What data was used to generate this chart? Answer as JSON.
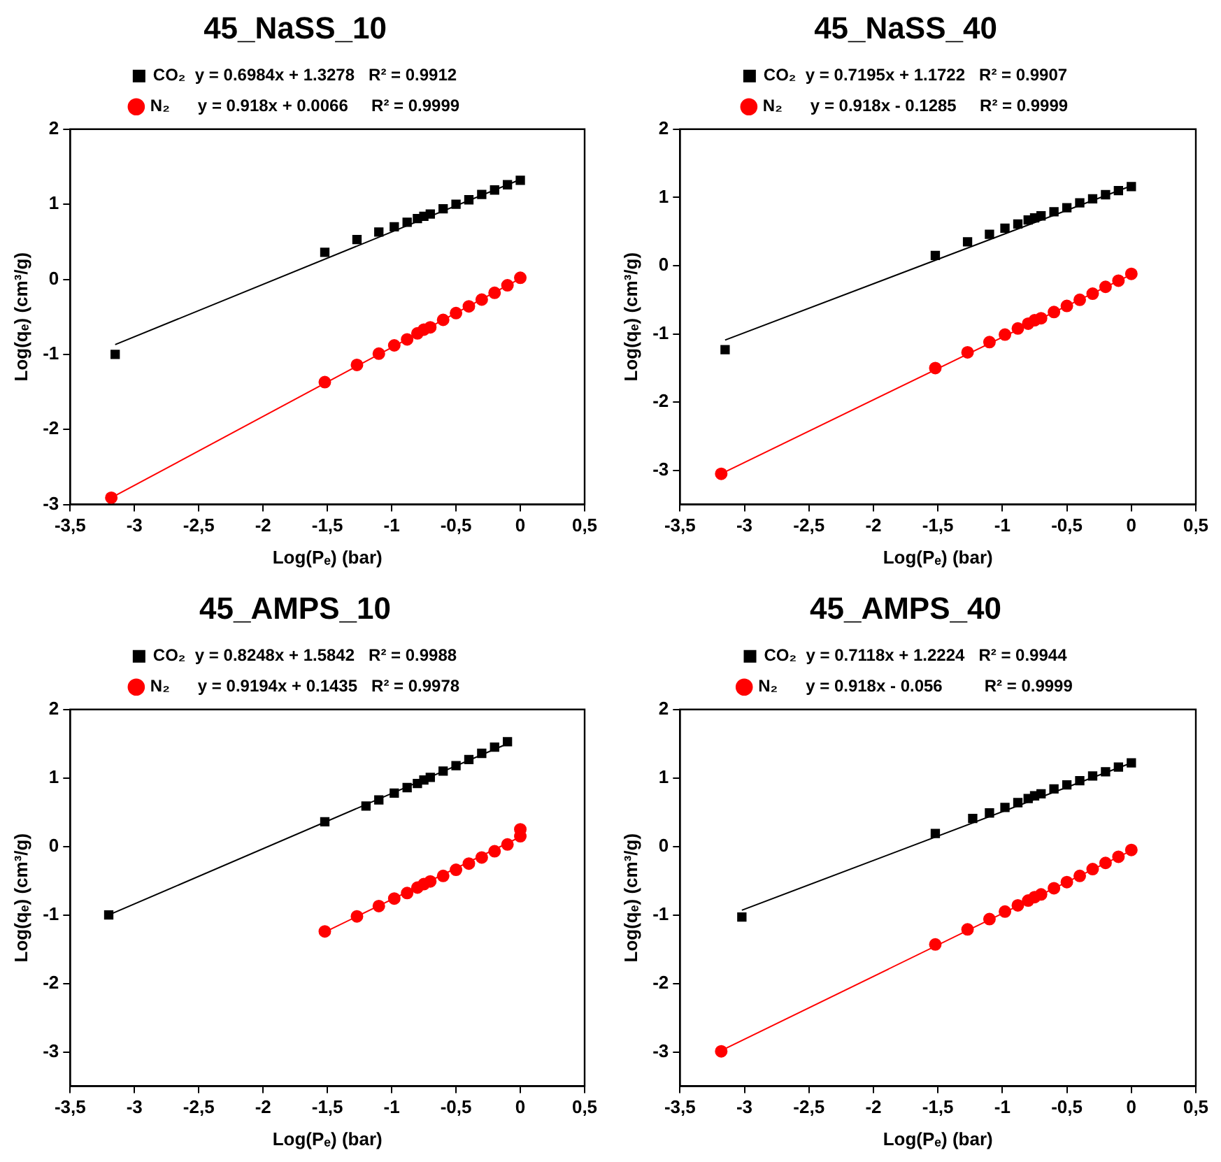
{
  "chart_data": [
    {
      "type": "scatter",
      "title": "45_NaSS_10",
      "xlabel": "Log(Pₑ) (bar)",
      "ylabel": "Log(qₑ) (cm³/g)",
      "legend": "top",
      "xlim": [
        -3.5,
        0.5
      ],
      "xticks": [
        {
          "value": -3.5,
          "label": "-3,5"
        },
        -3,
        {
          "value": -2.5,
          "label": "-2,5"
        },
        -2,
        {
          "value": -1.5,
          "label": "-1,5"
        },
        -1,
        {
          "value": -0.5,
          "label": "-0,5"
        },
        0,
        {
          "value": 0.5,
          "label": "0,5"
        }
      ],
      "ylim": [
        -3,
        2
      ],
      "yticks": [
        -3,
        -2,
        -1,
        0,
        1,
        2
      ],
      "series": [
        {
          "name": "CO₂  y = 0.6984x + 1.3278   R² = 0.9912",
          "color": "#000000",
          "marker": "square",
          "x": [
            -3.15,
            -1.52,
            -1.27,
            -1.1,
            -0.98,
            -0.88,
            -0.8,
            -0.75,
            -0.7,
            -0.6,
            -0.5,
            -0.4,
            -0.3,
            -0.2,
            -0.1,
            0
          ],
          "values": [
            -1.0,
            0.36,
            0.53,
            0.63,
            0.7,
            0.76,
            0.81,
            0.84,
            0.87,
            0.94,
            1.0,
            1.06,
            1.13,
            1.19,
            1.26,
            1.32
          ]
        },
        {
          "name": "N₂      y = 0.918x + 0.0066     R² = 0.9999",
          "color": "#ff0000",
          "marker": "circle",
          "x": [
            -3.18,
            -1.52,
            -1.27,
            -1.1,
            -0.98,
            -0.88,
            -0.8,
            -0.75,
            -0.7,
            -0.6,
            -0.5,
            -0.4,
            -0.3,
            -0.2,
            -0.1,
            0
          ],
          "values": [
            -2.91,
            -1.37,
            -1.14,
            -0.99,
            -0.88,
            -0.8,
            -0.72,
            -0.67,
            -0.64,
            -0.54,
            -0.45,
            -0.36,
            -0.27,
            -0.18,
            -0.08,
            0.02
          ]
        },
        {
          "type": "line",
          "color": "#000000",
          "marker": "none",
          "line_style": "solid",
          "x": [
            -3.15,
            0
          ],
          "values": [
            -0.87,
            1.33
          ]
        },
        {
          "type": "line",
          "color": "#ff0000",
          "marker": "none",
          "line_style": "solid",
          "x": [
            -3.18,
            0
          ],
          "values": [
            -2.91,
            0.01
          ]
        }
      ]
    },
    {
      "type": "scatter",
      "title": "45_NaSS_40",
      "xlabel": "Log(Pₑ) (bar)",
      "ylabel": "Log(qₑ) (cm³/g)",
      "legend": "top",
      "xlim": [
        -3.5,
        0.5
      ],
      "xticks": [
        {
          "value": -3.5,
          "label": "-3,5"
        },
        -3,
        {
          "value": -2.5,
          "label": "-2,5"
        },
        -2,
        {
          "value": -1.5,
          "label": "-1,5"
        },
        -1,
        {
          "value": -0.5,
          "label": "-0,5"
        },
        0,
        {
          "value": 0.5,
          "label": "0,5"
        }
      ],
      "ylim": [
        -3.5,
        2
      ],
      "yticks": [
        -3,
        -2,
        -1,
        0,
        1,
        2
      ],
      "series": [
        {
          "name": "CO₂  y = 0.7195x + 1.1722   R² = 0.9907",
          "color": "#000000",
          "marker": "square",
          "x": [
            -3.15,
            -1.52,
            -1.27,
            -1.1,
            -0.98,
            -0.88,
            -0.8,
            -0.75,
            -0.7,
            -0.6,
            -0.5,
            -0.4,
            -0.3,
            -0.2,
            -0.1,
            0
          ],
          "values": [
            -1.23,
            0.15,
            0.35,
            0.46,
            0.55,
            0.61,
            0.67,
            0.7,
            0.73,
            0.79,
            0.85,
            0.92,
            0.98,
            1.04,
            1.1,
            1.16
          ]
        },
        {
          "name": "N₂      y = 0.918x - 0.1285     R² = 0.9999",
          "color": "#ff0000",
          "marker": "circle",
          "x": [
            -3.18,
            -1.52,
            -1.27,
            -1.1,
            -0.98,
            -0.88,
            -0.8,
            -0.75,
            -0.7,
            -0.6,
            -0.5,
            -0.4,
            -0.3,
            -0.2,
            -0.1,
            0
          ],
          "values": [
            -3.05,
            -1.5,
            -1.27,
            -1.12,
            -1.01,
            -0.92,
            -0.85,
            -0.8,
            -0.77,
            -0.68,
            -0.59,
            -0.5,
            -0.41,
            -0.31,
            -0.22,
            -0.12
          ]
        },
        {
          "type": "line",
          "color": "#000000",
          "marker": "none",
          "line_style": "solid",
          "x": [
            -3.15,
            0
          ],
          "values": [
            -1.09,
            1.17
          ]
        },
        {
          "type": "line",
          "color": "#ff0000",
          "marker": "none",
          "line_style": "solid",
          "x": [
            -3.18,
            0
          ],
          "values": [
            -3.05,
            -0.13
          ]
        }
      ]
    },
    {
      "type": "scatter",
      "title": "45_AMPS_10",
      "xlabel": "Log(Pₑ) (bar)",
      "ylabel": "Log(qₑ) (cm³/g)",
      "legend": "top",
      "xlim": [
        -3.5,
        0.5
      ],
      "xticks": [
        {
          "value": -3.5,
          "label": "-3,5"
        },
        -3,
        {
          "value": -2.5,
          "label": "-2,5"
        },
        -2,
        {
          "value": -1.5,
          "label": "-1,5"
        },
        -1,
        {
          "value": -0.5,
          "label": "-0,5"
        },
        0,
        {
          "value": 0.5,
          "label": "0,5"
        }
      ],
      "ylim": [
        -3.5,
        2
      ],
      "yticks": [
        -3,
        -2,
        -1,
        0,
        1,
        2
      ],
      "series": [
        {
          "name": "CO₂  y = 0.8248x + 1.5842   R² = 0.9988",
          "color": "#000000",
          "marker": "square",
          "x": [
            -3.2,
            -1.52,
            -1.2,
            -1.1,
            -0.98,
            -0.88,
            -0.8,
            -0.75,
            -0.7,
            -0.6,
            -0.5,
            -0.4,
            -0.3,
            -0.2,
            -0.1
          ],
          "values": [
            -1.0,
            0.36,
            0.59,
            0.68,
            0.78,
            0.86,
            0.92,
            0.97,
            1.01,
            1.1,
            1.18,
            1.27,
            1.36,
            1.45,
            1.53
          ]
        },
        {
          "name": "N₂      y = 0.9194x + 0.1435   R² = 0.9978",
          "color": "#ff0000",
          "marker": "circle",
          "x": [
            -1.52,
            -1.27,
            -1.1,
            -0.98,
            -0.88,
            -0.8,
            -0.75,
            -0.7,
            -0.6,
            -0.5,
            -0.4,
            -0.3,
            -0.2,
            -0.1,
            0,
            0
          ],
          "values": [
            -1.24,
            -1.02,
            -0.87,
            -0.76,
            -0.68,
            -0.6,
            -0.55,
            -0.51,
            -0.43,
            -0.34,
            -0.25,
            -0.16,
            -0.07,
            0.03,
            0.15,
            0.25
          ]
        },
        {
          "type": "line",
          "color": "#000000",
          "marker": "none",
          "line_style": "solid",
          "x": [
            -3.2,
            -0.1
          ],
          "values": [
            -1.0,
            1.5
          ]
        },
        {
          "type": "line",
          "color": "#ff0000",
          "marker": "none",
          "line_style": "solid",
          "x": [
            -1.52,
            0
          ],
          "values": [
            -1.25,
            0.14
          ]
        }
      ]
    },
    {
      "type": "scatter",
      "title": "45_AMPS_40",
      "xlabel": "Log(Pₑ) (bar)",
      "ylabel": "Log(qₑ) (cm³/g)",
      "legend": "top",
      "xlim": [
        -3.5,
        0.5
      ],
      "xticks": [
        {
          "value": -3.5,
          "label": "-3,5"
        },
        -3,
        {
          "value": -2.5,
          "label": "-2,5"
        },
        -2,
        {
          "value": -1.5,
          "label": "-1,5"
        },
        -1,
        {
          "value": -0.5,
          "label": "-0,5"
        },
        0,
        {
          "value": 0.5,
          "label": "0,5"
        }
      ],
      "ylim": [
        -3.5,
        2
      ],
      "yticks": [
        -3,
        -2,
        -1,
        0,
        1,
        2
      ],
      "series": [
        {
          "name": "CO₂  y = 0.7118x + 1.2224   R² = 0.9944",
          "color": "#000000",
          "marker": "square",
          "x": [
            -3.02,
            -1.52,
            -1.23,
            -1.1,
            -0.98,
            -0.88,
            -0.8,
            -0.75,
            -0.7,
            -0.6,
            -0.5,
            -0.4,
            -0.3,
            -0.2,
            -0.1,
            0
          ],
          "values": [
            -1.03,
            0.19,
            0.41,
            0.49,
            0.57,
            0.64,
            0.7,
            0.74,
            0.77,
            0.84,
            0.9,
            0.96,
            1.03,
            1.09,
            1.16,
            1.22
          ]
        },
        {
          "name": "N₂      y = 0.918x - 0.056         R² = 0.9999",
          "color": "#ff0000",
          "marker": "circle",
          "x": [
            -3.18,
            -1.52,
            -1.27,
            -1.1,
            -0.98,
            -0.88,
            -0.8,
            -0.75,
            -0.7,
            -0.6,
            -0.5,
            -0.4,
            -0.3,
            -0.2,
            -0.1,
            0
          ],
          "values": [
            -2.99,
            -1.43,
            -1.21,
            -1.06,
            -0.95,
            -0.86,
            -0.79,
            -0.74,
            -0.7,
            -0.61,
            -0.52,
            -0.43,
            -0.33,
            -0.24,
            -0.15,
            -0.05
          ]
        },
        {
          "type": "line",
          "color": "#000000",
          "marker": "none",
          "line_style": "solid",
          "x": [
            -3.02,
            0
          ],
          "values": [
            -0.93,
            1.22
          ]
        },
        {
          "type": "line",
          "color": "#ff0000",
          "marker": "none",
          "line_style": "solid",
          "x": [
            -3.18,
            0
          ],
          "values": [
            -2.98,
            -0.06
          ]
        }
      ]
    }
  ]
}
